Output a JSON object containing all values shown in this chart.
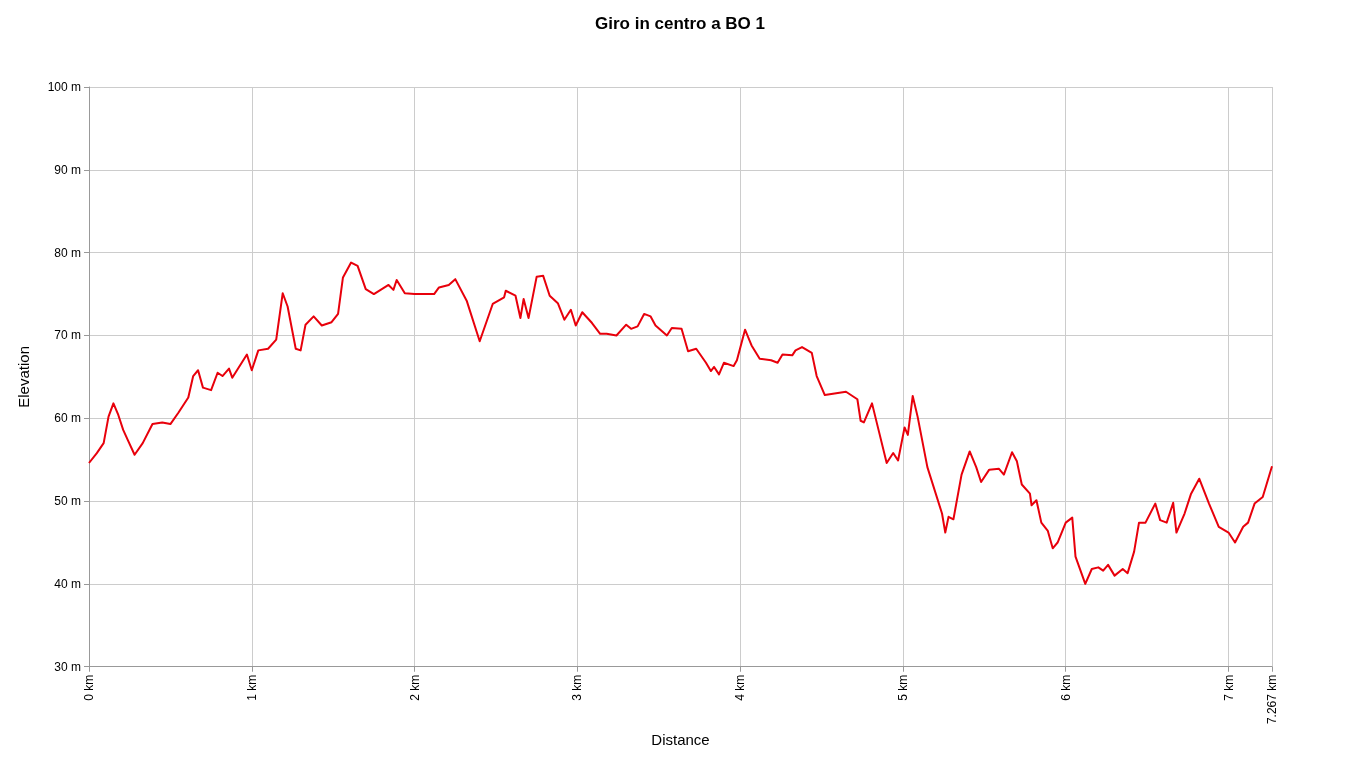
{
  "chart_data": {
    "type": "line",
    "title": "Giro in centro a BO 1",
    "xlabel": "Distance",
    "ylabel": "Elevation",
    "xlim": [
      0,
      7.267
    ],
    "xticks": [
      {
        "value": 0,
        "label": "0 km"
      },
      {
        "value": 1,
        "label": "1 km"
      },
      {
        "value": 2,
        "label": "2 km"
      },
      {
        "value": 3,
        "label": "3 km"
      },
      {
        "value": 4,
        "label": "4 km"
      },
      {
        "value": 5,
        "label": "5 km"
      },
      {
        "value": 6,
        "label": "6 km"
      },
      {
        "value": 7,
        "label": "7 km"
      },
      {
        "value": 7.267,
        "label": "7.267 km"
      }
    ],
    "ylim": [
      30,
      100
    ],
    "yticks": [
      {
        "value": 30,
        "label": "30 m"
      },
      {
        "value": 40,
        "label": "40 m"
      },
      {
        "value": 50,
        "label": "50 m"
      },
      {
        "value": 60,
        "label": "60 m"
      },
      {
        "value": 70,
        "label": "70 m"
      },
      {
        "value": 80,
        "label": "80 m"
      },
      {
        "value": 90,
        "label": "90 m"
      },
      {
        "value": 100,
        "label": "100 m"
      }
    ],
    "grid": true,
    "marker": "none",
    "line_style": "solid",
    "series": [
      {
        "color": "#e8000b",
        "x": [
          0,
          0.048,
          0.09,
          0.12,
          0.15,
          0.18,
          0.21,
          0.24,
          0.28,
          0.33,
          0.39,
          0.45,
          0.5,
          0.55,
          0.61,
          0.64,
          0.67,
          0.7,
          0.75,
          0.79,
          0.82,
          0.86,
          0.88,
          0.97,
          1.0,
          1.04,
          1.1,
          1.15,
          1.19,
          1.22,
          1.27,
          1.3,
          1.33,
          1.38,
          1.43,
          1.49,
          1.53,
          1.56,
          1.61,
          1.65,
          1.7,
          1.75,
          1.84,
          1.87,
          1.89,
          1.94,
          2.0,
          2.12,
          2.15,
          2.21,
          2.25,
          2.32,
          2.4,
          2.48,
          2.55,
          2.56,
          2.62,
          2.65,
          2.67,
          2.7,
          2.75,
          2.79,
          2.83,
          2.88,
          2.92,
          2.96,
          2.99,
          3.03,
          3.09,
          3.14,
          3.18,
          3.24,
          3.3,
          3.33,
          3.37,
          3.41,
          3.45,
          3.48,
          3.55,
          3.58,
          3.64,
          3.68,
          3.73,
          3.79,
          3.82,
          3.84,
          3.87,
          3.9,
          3.96,
          3.98,
          4.03,
          4.07,
          4.12,
          4.19,
          4.23,
          4.26,
          4.32,
          4.34,
          4.38,
          4.44,
          4.47,
          4.52,
          4.58,
          4.65,
          4.72,
          4.74,
          4.76,
          4.81,
          4.85,
          4.9,
          4.94,
          4.97,
          5.01,
          5.03,
          5.06,
          5.09,
          5.15,
          5.24,
          5.26,
          5.28,
          5.31,
          5.36,
          5.41,
          5.45,
          5.48,
          5.53,
          5.59,
          5.62,
          5.67,
          5.7,
          5.73,
          5.78,
          5.79,
          5.82,
          5.85,
          5.89,
          5.92,
          5.95,
          6.0,
          6.04,
          6.06,
          6.12,
          6.16,
          6.2,
          6.23,
          6.26,
          6.3,
          6.35,
          6.38,
          6.42,
          6.45,
          6.49,
          6.55,
          6.58,
          6.62,
          6.66,
          6.68,
          6.73,
          6.77,
          6.82,
          6.88,
          6.94,
          7.0,
          7.04,
          7.09,
          7.12,
          7.16,
          7.21,
          7.267
        ],
        "values": [
          54.6,
          55.8,
          57,
          60.2,
          61.8,
          60.4,
          58.6,
          57.3,
          55.6,
          57,
          59.3,
          59.5,
          59.3,
          60.7,
          62.5,
          65.1,
          65.8,
          63.7,
          63.4,
          65.5,
          65.1,
          66,
          64.9,
          67.7,
          65.8,
          68.2,
          68.4,
          69.5,
          75.1,
          73.5,
          68.4,
          68.2,
          71.3,
          72.3,
          71.2,
          71.6,
          72.6,
          77,
          78.8,
          78.4,
          75.6,
          75,
          76.1,
          75.5,
          76.7,
          75.1,
          75,
          75,
          75.8,
          76.1,
          76.8,
          74.2,
          69.3,
          73.8,
          74.6,
          75.4,
          74.8,
          72.1,
          74.4,
          72.1,
          77.1,
          77.2,
          74.8,
          73.9,
          71.9,
          73.1,
          71.2,
          72.8,
          71.5,
          70.2,
          70.2,
          70,
          71.3,
          70.8,
          71.1,
          72.6,
          72.3,
          71.2,
          70,
          70.9,
          70.8,
          68.1,
          68.4,
          66.7,
          65.7,
          66.2,
          65.3,
          66.7,
          66.3,
          67,
          70.7,
          68.8,
          67.2,
          67,
          66.7,
          67.7,
          67.6,
          68.2,
          68.6,
          67.9,
          65.1,
          62.8,
          63,
          63.2,
          62.3,
          59.7,
          59.5,
          61.8,
          58.6,
          54.6,
          55.8,
          54.9,
          58.9,
          58,
          62.7,
          60.2,
          54.1,
          48.5,
          46.2,
          48.1,
          47.8,
          53.2,
          56,
          54.1,
          52.3,
          53.8,
          53.9,
          53.2,
          55.9,
          54.8,
          52,
          50.9,
          49.5,
          50.1,
          47.4,
          46.4,
          44.3,
          45,
          47.4,
          48,
          43.3,
          40,
          41.8,
          42,
          41.6,
          42.3,
          41,
          41.8,
          41.3,
          43.9,
          47.4,
          47.4,
          49.7,
          47.7,
          47.4,
          49.8,
          46.2,
          48.5,
          50.9,
          52.7,
          49.7,
          46.9,
          46.2,
          45,
          46.9,
          47.4,
          49.7,
          50.5,
          54.2
        ]
      }
    ]
  }
}
